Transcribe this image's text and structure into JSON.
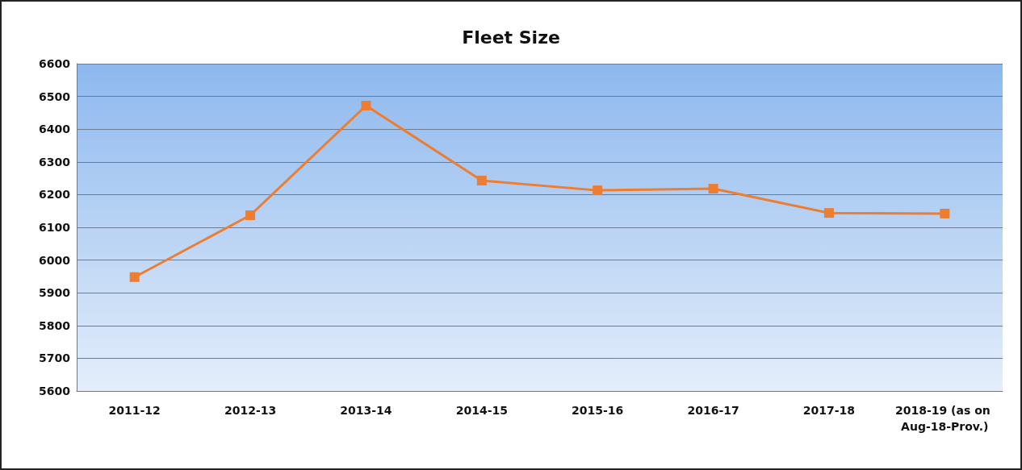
{
  "chart_data": {
    "type": "line",
    "title": "Fleet Size",
    "categories": [
      "2011-12",
      "2012-13",
      "2013-14",
      "2014-15",
      "2015-16",
      "2016-17",
      "2017-18",
      "2018-19 (as on Aug-18-Prov.)"
    ],
    "values": [
      5948,
      6137,
      6472,
      6243,
      6213,
      6218,
      6144,
      6142
    ],
    "color": "#ed7d31",
    "marker": "square",
    "line_style": "solid",
    "ylim": [
      5600,
      6600
    ],
    "yticks": [
      5600,
      5700,
      5800,
      5900,
      6000,
      6100,
      6200,
      6300,
      6400,
      6500,
      6600
    ],
    "grid": "y"
  }
}
